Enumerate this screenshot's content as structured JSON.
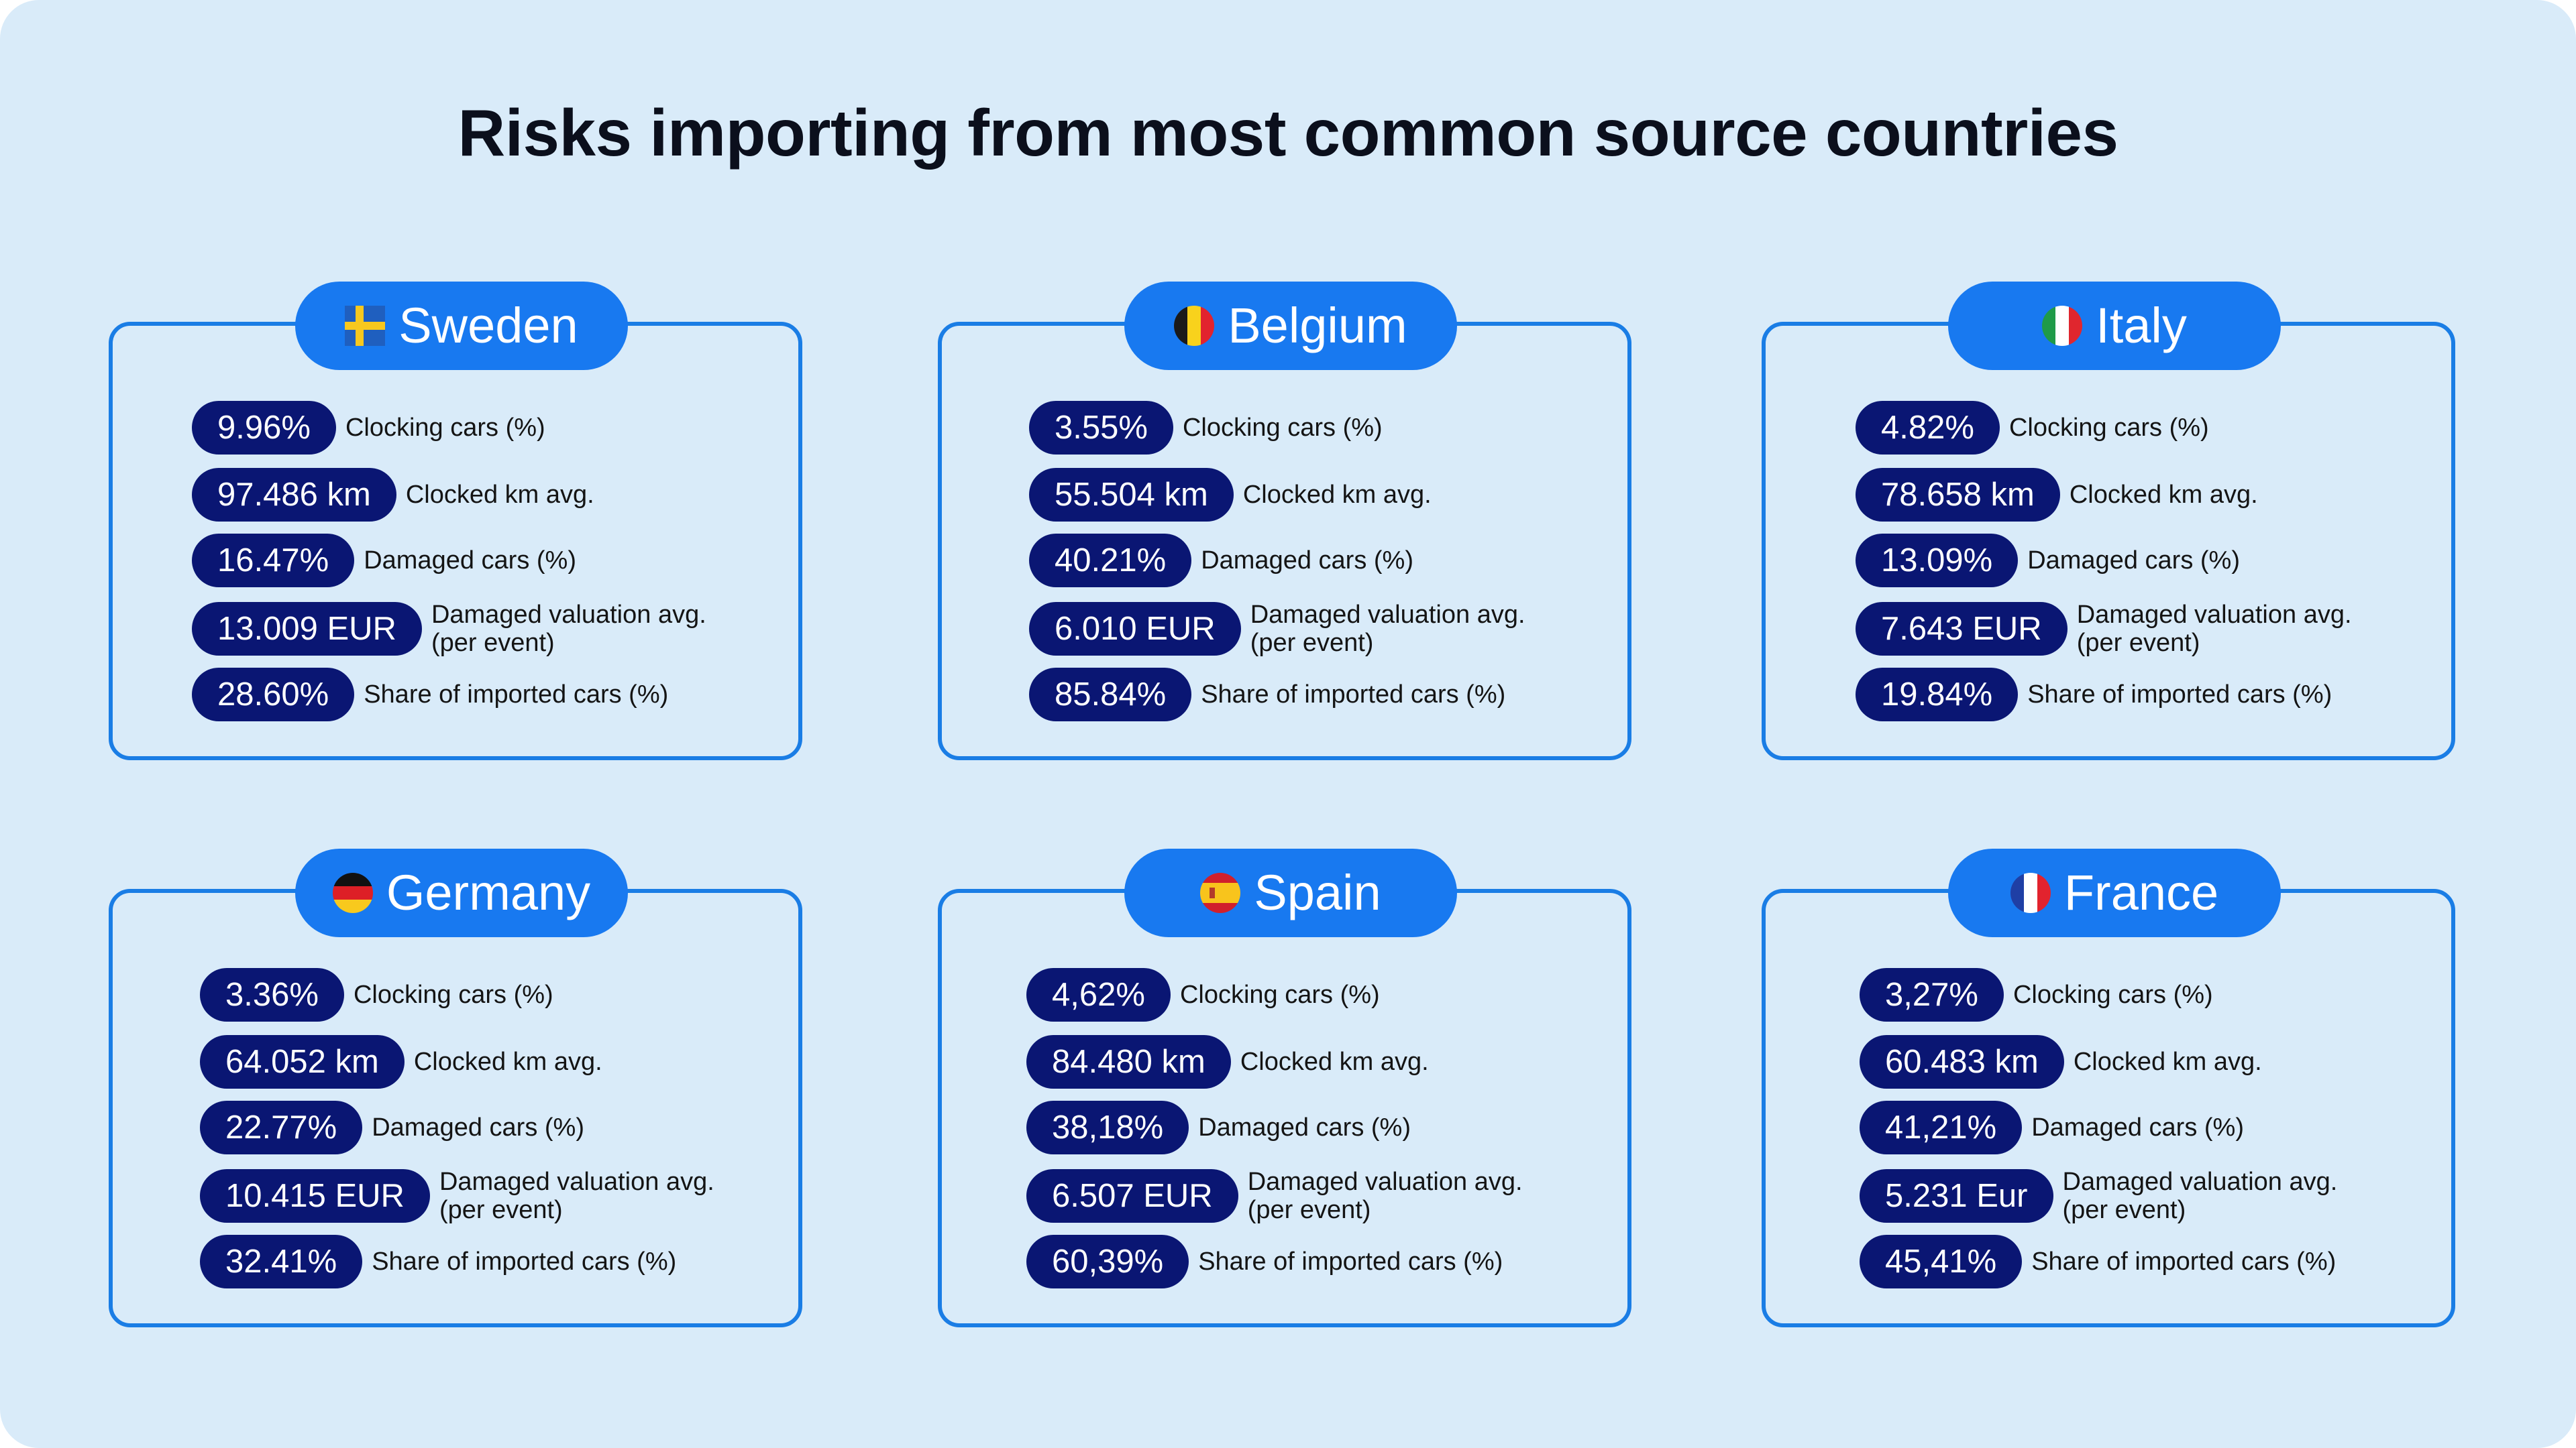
{
  "title": "Risks importing from most common source countries",
  "colors": {
    "background": "#d9ebf9",
    "card_border": "#1a7de5",
    "header_fill": "#1879f0",
    "value_pill": "#0a1673"
  },
  "cards": [
    {
      "country": "Sweden",
      "flag_icon": "sweden-flag-icon",
      "metrics": [
        {
          "value": "9.96%",
          "label": "Clocking cars (%)"
        },
        {
          "value": "97.486 km",
          "label": "Clocked km avg."
        },
        {
          "value": "16.47%",
          "label": "Damaged cars (%)"
        },
        {
          "value": "13.009 EUR",
          "label_line1": "Damaged valuation avg.",
          "label_line2": "(per event)"
        },
        {
          "value": "28.60%",
          "label": "Share of imported cars (%)"
        }
      ]
    },
    {
      "country": "Belgium",
      "flag_icon": "belgium-flag-icon",
      "metrics": [
        {
          "value": "3.55%",
          "label": "Clocking cars (%)"
        },
        {
          "value": "55.504 km",
          "label": "Clocked km avg."
        },
        {
          "value": "40.21%",
          "label": "Damaged cars (%)"
        },
        {
          "value": "6.010 EUR",
          "label_line1": "Damaged valuation avg.",
          "label_line2": "(per event)"
        },
        {
          "value": "85.84%",
          "label": "Share of imported cars (%)"
        }
      ]
    },
    {
      "country": "Italy",
      "flag_icon": "italy-flag-icon",
      "metrics": [
        {
          "value": "4.82%",
          "label": "Clocking cars (%)"
        },
        {
          "value": "78.658 km",
          "label": "Clocked km avg."
        },
        {
          "value": "13.09%",
          "label": "Damaged cars (%)"
        },
        {
          "value": "7.643 EUR",
          "label_line1": "Damaged valuation avg.",
          "label_line2": "(per event)"
        },
        {
          "value": "19.84%",
          "label": "Share of imported cars (%)"
        }
      ]
    },
    {
      "country": "Germany",
      "flag_icon": "germany-flag-icon",
      "metrics": [
        {
          "value": "3.36%",
          "label": "Clocking cars (%)"
        },
        {
          "value": "64.052 km",
          "label": "Clocked km avg."
        },
        {
          "value": "22.77%",
          "label": "Damaged cars (%)"
        },
        {
          "value": "10.415 EUR",
          "label_line1": "Damaged valuation avg.",
          "label_line2": "(per event)"
        },
        {
          "value": "32.41%",
          "label": "Share of imported cars (%)"
        }
      ]
    },
    {
      "country": "Spain",
      "flag_icon": "spain-flag-icon",
      "metrics": [
        {
          "value": "4,62%",
          "label": "Clocking cars (%)"
        },
        {
          "value": "84.480 km",
          "label": "Clocked km avg."
        },
        {
          "value": "38,18%",
          "label": "Damaged cars (%)"
        },
        {
          "value": "6.507 EUR",
          "label_line1": "Damaged valuation avg.",
          "label_line2": "(per event)"
        },
        {
          "value": "60,39%",
          "label": "Share of imported cars (%)"
        }
      ]
    },
    {
      "country": "France",
      "flag_icon": "france-flag-icon",
      "metrics": [
        {
          "value": "3,27%",
          "label": "Clocking cars (%)"
        },
        {
          "value": "60.483 km",
          "label": "Clocked km avg."
        },
        {
          "value": "41,21%",
          "label": "Damaged cars (%)"
        },
        {
          "value": "5.231 Eur",
          "label_line1": "Damaged valuation avg.",
          "label_line2": "(per event)"
        },
        {
          "value": "45,41%",
          "label": "Share of imported cars (%)"
        }
      ]
    }
  ]
}
